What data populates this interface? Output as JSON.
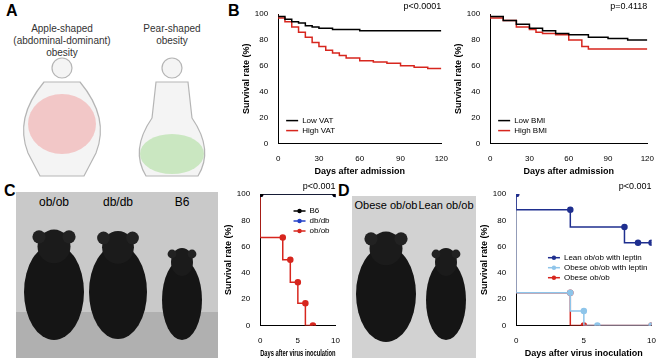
{
  "figure": {
    "panel_labels": [
      "A",
      "B",
      "C",
      "D"
    ],
    "A": {
      "left_lines": [
        "Apple-shaped",
        "(abdominal-dominant)",
        "obesity"
      ],
      "right_lines": [
        "Pear-shaped",
        "obesity"
      ]
    },
    "C": {
      "photo_labels": [
        "ob/ob",
        "db/db",
        "B6"
      ]
    },
    "D": {
      "photo_labels": [
        "Obese ob/ob",
        "Lean ob/ob"
      ]
    }
  },
  "chart_data": [
    {
      "type": "line",
      "line_style": "step",
      "x_label": "Days after admission",
      "y_label": "Survival rate (%)",
      "annotation": "p<0.0001",
      "legend": "bottom-left",
      "grid": false,
      "xlim": [
        0,
        120
      ],
      "xticks": [
        0,
        30,
        60,
        90,
        120
      ],
      "ylim": [
        0,
        100
      ],
      "yticks": [
        0,
        20,
        40,
        60,
        80,
        100
      ],
      "series": [
        {
          "name": "Low VAT",
          "color": "#000000",
          "x": [
            0,
            5,
            10,
            15,
            20,
            25,
            30,
            40,
            50,
            60,
            75,
            90,
            100,
            120
          ],
          "values": [
            100,
            98,
            96,
            94,
            93,
            91,
            90,
            89,
            88,
            88,
            87,
            87,
            87,
            87
          ]
        },
        {
          "name": "High VAT",
          "color": "#d7261e",
          "x": [
            0,
            5,
            10,
            15,
            20,
            25,
            30,
            35,
            40,
            45,
            50,
            60,
            70,
            80,
            90,
            100,
            110,
            120
          ],
          "values": [
            100,
            97,
            94,
            90,
            86,
            82,
            78,
            75,
            72,
            70,
            68,
            66,
            64,
            63,
            62,
            60,
            59,
            58
          ]
        }
      ]
    },
    {
      "type": "line",
      "line_style": "step",
      "x_label": "Days after admission",
      "y_label": "Survival rate (%)",
      "annotation": "p=0.4118",
      "legend": "bottom-left",
      "grid": false,
      "xlim": [
        0,
        120
      ],
      "xticks": [
        0,
        30,
        60,
        90,
        120
      ],
      "ylim": [
        0,
        100
      ],
      "yticks": [
        0,
        20,
        40,
        60,
        80,
        100
      ],
      "series": [
        {
          "name": "Low BMI",
          "color": "#000000",
          "x": [
            0,
            10,
            20,
            30,
            40,
            50,
            60,
            75,
            90,
            105,
            120
          ],
          "values": [
            100,
            98,
            95,
            92,
            89,
            87,
            85,
            84,
            82,
            81,
            80
          ]
        },
        {
          "name": "High BMI",
          "color": "#d7261e",
          "x": [
            0,
            10,
            20,
            30,
            35,
            40,
            50,
            60,
            70,
            75,
            90,
            120
          ],
          "values": [
            100,
            97,
            95,
            90,
            88,
            86,
            85,
            84,
            80,
            75,
            73,
            73
          ]
        }
      ]
    },
    {
      "type": "line",
      "line_style": "step",
      "x_label": "Days after virus inoculation",
      "y_label": "Survival rate (%)",
      "annotation": "p<0.001",
      "legend": "top-right",
      "grid": false,
      "xlim": [
        0,
        10
      ],
      "xticks": [
        0,
        5,
        10
      ],
      "ylim": [
        0,
        100
      ],
      "yticks": [
        0,
        20,
        40,
        60,
        80,
        100
      ],
      "series": [
        {
          "name": "B6",
          "color": "#000000",
          "marker": "circle",
          "x": [
            0,
            10
          ],
          "values": [
            100,
            100
          ]
        },
        {
          "name": "db/db",
          "color": "#2340c8",
          "marker": "circle",
          "x": [
            0,
            10
          ],
          "values": [
            100,
            100
          ]
        },
        {
          "name": "ob/ob",
          "color": "#d7261e",
          "marker": "circle",
          "x": [
            0,
            3,
            4,
            5,
            6,
            7
          ],
          "values": [
            100,
            67,
            50,
            33,
            17,
            0
          ]
        }
      ]
    },
    {
      "type": "line",
      "line_style": "step",
      "x_label": "Days after virus inoculation",
      "y_label": "Survival rate (%)",
      "annotation": "p<0.001",
      "legend": "right",
      "grid": false,
      "xlim": [
        0,
        10
      ],
      "xticks": [
        0,
        5,
        10
      ],
      "ylim": [
        0,
        100
      ],
      "yticks": [
        0,
        20,
        40,
        60,
        80,
        100
      ],
      "series": [
        {
          "name": "Lean ob/ob with leptin",
          "color": "#1f2f8f",
          "marker": "circle",
          "x": [
            0,
            4,
            8,
            9,
            10
          ],
          "values": [
            100,
            88,
            75,
            63,
            63
          ]
        },
        {
          "name": "Obese ob/ob with leptin",
          "color": "#8ec5ea",
          "marker": "circle",
          "x": [
            0,
            4,
            5,
            6,
            10
          ],
          "values": [
            100,
            25,
            11,
            0,
            0
          ]
        },
        {
          "name": "Obese ob/ob",
          "color": "#d7261e",
          "marker": "circle",
          "x": [
            0,
            4,
            5,
            10
          ],
          "values": [
            100,
            25,
            0,
            0
          ]
        }
      ]
    }
  ]
}
